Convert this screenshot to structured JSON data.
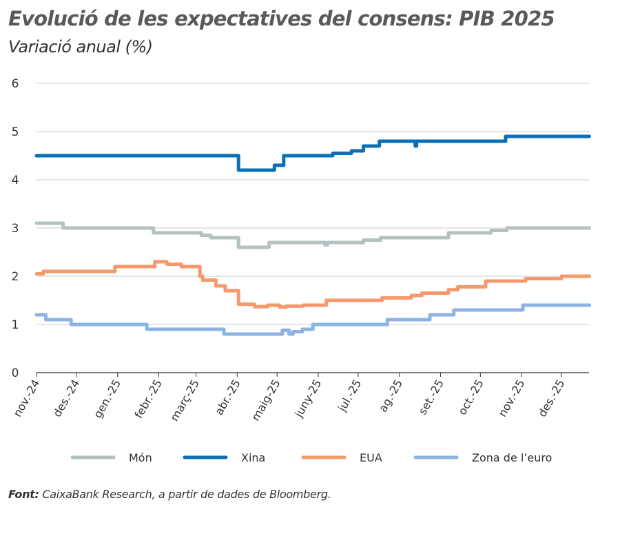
{
  "title": "Evolució de les expectatives del consens: PIB 2025",
  "subtitle": "Variació anual (%)",
  "source_label": "Font:",
  "source_text": "CaixaBank Research, a partir de dades de Bloomberg.",
  "chart_data": {
    "type": "line",
    "step": true,
    "ylim": [
      0,
      6
    ],
    "yticks": [
      "0",
      "1",
      "2",
      "3",
      "4",
      "5",
      "6"
    ],
    "grid": true,
    "legend_position": "bottom",
    "x_start": "2024-11-01",
    "x_end": "2025-12-22",
    "xticks": [
      {
        "date": "2024-11-01",
        "label": "nov.-24"
      },
      {
        "date": "2024-12-01",
        "label": "des.-24"
      },
      {
        "date": "2025-01-01",
        "label": "gen.-25"
      },
      {
        "date": "2025-02-01",
        "label": "febr.-25"
      },
      {
        "date": "2025-03-01",
        "label": "març-25"
      },
      {
        "date": "2025-04-01",
        "label": "abr.-25"
      },
      {
        "date": "2025-05-01",
        "label": "maig-25"
      },
      {
        "date": "2025-06-01",
        "label": "juny-25"
      },
      {
        "date": "2025-07-01",
        "label": "jul.-25"
      },
      {
        "date": "2025-08-01",
        "label": "ag.-25"
      },
      {
        "date": "2025-09-01",
        "label": "set.-25"
      },
      {
        "date": "2025-10-01",
        "label": "oct.-25"
      },
      {
        "date": "2025-11-01",
        "label": "nov.-25"
      },
      {
        "date": "2025-12-01",
        "label": "des.-25"
      }
    ],
    "series": [
      {
        "name": "Món",
        "color": "#b3c1c1",
        "points": [
          [
            "2024-11-01",
            3.1
          ],
          [
            "2024-11-21",
            3.0
          ],
          [
            "2025-01-28",
            2.9
          ],
          [
            "2025-03-05",
            2.85
          ],
          [
            "2025-03-12",
            2.8
          ],
          [
            "2025-04-02",
            2.6
          ],
          [
            "2025-04-25",
            2.7
          ],
          [
            "2025-06-06",
            2.65
          ],
          [
            "2025-06-08",
            2.7
          ],
          [
            "2025-07-05",
            2.75
          ],
          [
            "2025-07-18",
            2.8
          ],
          [
            "2025-09-07",
            2.9
          ],
          [
            "2025-10-09",
            2.95
          ],
          [
            "2025-10-21",
            3.0
          ]
        ]
      },
      {
        "name": "Xina",
        "color": "#0a6fb5",
        "points": [
          [
            "2024-11-01",
            4.5
          ],
          [
            "2025-04-02",
            4.2
          ],
          [
            "2025-04-29",
            4.3
          ],
          [
            "2025-05-06",
            4.5
          ],
          [
            "2025-06-12",
            4.55
          ],
          [
            "2025-06-26",
            4.6
          ],
          [
            "2025-07-05",
            4.7
          ],
          [
            "2025-07-17",
            4.8
          ],
          [
            "2025-08-13",
            4.7
          ],
          [
            "2025-08-14",
            4.8
          ],
          [
            "2025-10-20",
            4.9
          ]
        ]
      },
      {
        "name": "EUA",
        "color": "#f4996b",
        "points": [
          [
            "2024-11-01",
            2.05
          ],
          [
            "2024-11-06",
            2.1
          ],
          [
            "2024-12-30",
            2.2
          ],
          [
            "2025-01-29",
            2.3
          ],
          [
            "2025-02-07",
            2.25
          ],
          [
            "2025-02-18",
            2.2
          ],
          [
            "2025-03-04",
            2.0
          ],
          [
            "2025-03-06",
            1.92
          ],
          [
            "2025-03-16",
            1.8
          ],
          [
            "2025-03-23",
            1.7
          ],
          [
            "2025-04-02",
            1.42
          ],
          [
            "2025-04-14",
            1.37
          ],
          [
            "2025-04-24",
            1.4
          ],
          [
            "2025-05-03",
            1.36
          ],
          [
            "2025-05-08",
            1.38
          ],
          [
            "2025-05-21",
            1.4
          ],
          [
            "2025-06-07",
            1.5
          ],
          [
            "2025-07-19",
            1.55
          ],
          [
            "2025-08-10",
            1.6
          ],
          [
            "2025-08-18",
            1.65
          ],
          [
            "2025-09-07",
            1.72
          ],
          [
            "2025-09-14",
            1.78
          ],
          [
            "2025-10-05",
            1.9
          ],
          [
            "2025-11-04",
            1.95
          ],
          [
            "2025-12-01",
            2.0
          ]
        ]
      },
      {
        "name": "Zona de l’euro",
        "color": "#8db3e2",
        "points": [
          [
            "2024-11-01",
            1.2
          ],
          [
            "2024-11-08",
            1.1
          ],
          [
            "2024-11-27",
            1.0
          ],
          [
            "2025-01-23",
            0.9
          ],
          [
            "2025-03-22",
            0.8
          ],
          [
            "2025-05-05",
            0.88
          ],
          [
            "2025-05-10",
            0.8
          ],
          [
            "2025-05-13",
            0.85
          ],
          [
            "2025-05-20",
            0.9
          ],
          [
            "2025-05-28",
            1.0
          ],
          [
            "2025-07-23",
            1.1
          ],
          [
            "2025-08-24",
            1.2
          ],
          [
            "2025-09-11",
            1.3
          ],
          [
            "2025-11-02",
            1.4
          ]
        ]
      }
    ]
  }
}
